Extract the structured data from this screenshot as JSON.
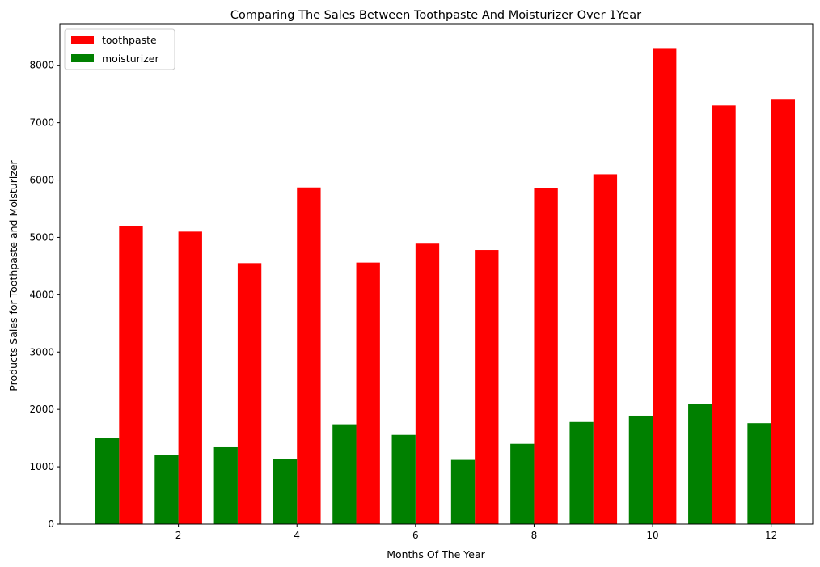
{
  "chart_data": {
    "type": "bar",
    "title": "Comparing The Sales Between Toothpaste And Moisturizer Over 1Year",
    "xlabel": "Months Of The Year",
    "ylabel": "Products Sales for Toothpaste and Moisturizer",
    "x": [
      1,
      2,
      3,
      4,
      5,
      6,
      7,
      8,
      9,
      10,
      11,
      12
    ],
    "xlim": [
      -0.0,
      12.7
    ],
    "ylim": [
      0,
      8715
    ],
    "xticks": [
      2,
      4,
      6,
      8,
      10,
      12
    ],
    "yticks": [
      0,
      1000,
      2000,
      3000,
      4000,
      5000,
      6000,
      7000,
      8000
    ],
    "bar_width": 0.4,
    "grid": false,
    "legend_position": "top-left",
    "series": [
      {
        "name": "toothpaste",
        "color": "#ff0000",
        "offset": 0.2,
        "values": [
          5200,
          5100,
          4550,
          5870,
          4560,
          4890,
          4780,
          5860,
          6100,
          8300,
          7300,
          7400
        ]
      },
      {
        "name": "moisturizer",
        "color": "#008000",
        "offset": -0.2,
        "values": [
          1500,
          1200,
          1340,
          1130,
          1740,
          1555,
          1120,
          1400,
          1780,
          1890,
          2100,
          1760
        ]
      }
    ]
  }
}
